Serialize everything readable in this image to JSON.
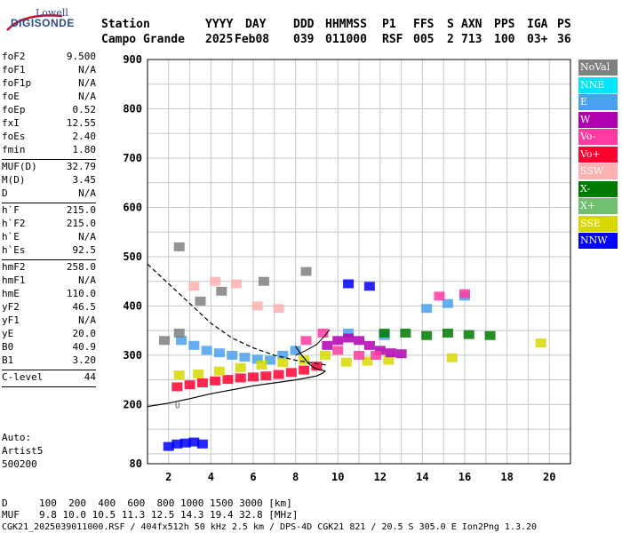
{
  "logo": {
    "line1": "Lowell",
    "line2": "DIGISONDE"
  },
  "header": {
    "labels": [
      "Station",
      "YYYY",
      "DAY",
      "DDD",
      "HHMMSS",
      "P1",
      "FFS",
      "S",
      "AXN",
      "PPS",
      "IGA",
      "PS"
    ],
    "values": [
      "Campo Grande",
      "2025",
      "Feb08",
      "039",
      "011000",
      "RSF",
      "005",
      "2",
      "713",
      "100",
      "03+",
      "36"
    ]
  },
  "params": [
    {
      "label": "foF2",
      "value": "9.500"
    },
    {
      "label": "foF1",
      "value": "N/A"
    },
    {
      "label": "foF1p",
      "value": "N/A"
    },
    {
      "label": "foE",
      "value": "N/A"
    },
    {
      "label": "foEp",
      "value": "0.52"
    },
    {
      "label": "fxI",
      "value": "12.55"
    },
    {
      "label": "foEs",
      "value": "2.40"
    },
    {
      "label": "fmin",
      "value": "1.80"
    },
    {
      "label": "MUF(D)",
      "value": "32.79"
    },
    {
      "label": "M(D)",
      "value": "3.45"
    },
    {
      "label": "D",
      "value": "N/A"
    },
    {
      "label": "h`F",
      "value": "215.0"
    },
    {
      "label": "h`F2",
      "value": "215.0"
    },
    {
      "label": "h`E",
      "value": "N/A"
    },
    {
      "label": "h`Es",
      "value": "92.5"
    },
    {
      "label": "hmF2",
      "value": "258.0"
    },
    {
      "label": "hmF1",
      "value": "N/A"
    },
    {
      "label": "hmE",
      "value": "110.0"
    },
    {
      "label": "yF2",
      "value": "46.5"
    },
    {
      "label": "yF1",
      "value": "N/A"
    },
    {
      "label": "yE",
      "value": "20.0"
    },
    {
      "label": "B0",
      "value": "40.9"
    },
    {
      "label": "B1",
      "value": "3.20"
    },
    {
      "label": "C-level",
      "value": "44"
    }
  ],
  "auto": {
    "line1": "Auto:",
    "line2": "Artist5",
    "line3": "500200"
  },
  "legend": [
    {
      "label": "NoVal",
      "color": "#808080"
    },
    {
      "label": "NNE",
      "color": "#00e5ff"
    },
    {
      "label": "E",
      "color": "#4aa0f0"
    },
    {
      "label": "W",
      "color": "#b000b0"
    },
    {
      "label": "Vo-",
      "color": "#ff3aa0"
    },
    {
      "label": "Vo+",
      "color": "#ff0030"
    },
    {
      "label": "SSW",
      "color": "#ffb0b0"
    },
    {
      "label": "X-",
      "color": "#007a00"
    },
    {
      "label": "X+",
      "color": "#70c070"
    },
    {
      "label": "SSE",
      "color": "#d8d800"
    },
    {
      "label": "NNW",
      "color": "#0000ff"
    }
  ],
  "footer": {
    "d_label": "D",
    "d_values": "100  200  400  600  800 1000 1500 3000 [km]",
    "muf_label": "MUF",
    "muf_values": "9.8 10.0 10.5 11.3 12.5 14.3 19.4 32.8 [MHz]",
    "file_line": "CGK21_2025039011000.RSF / 404fx512h 50 kHz 2.5 km / DPS-4D CGK21 821 / 20.5 S 305.0 E Ion2Png 1.3.20"
  },
  "chart_data": {
    "type": "scatter",
    "xlim": [
      1,
      21
    ],
    "ylim": [
      80,
      900
    ],
    "x_ticks": [
      2,
      4,
      6,
      8,
      10,
      12,
      14,
      16,
      18,
      20
    ],
    "y_ticks": [
      80,
      200,
      300,
      400,
      500,
      600,
      700,
      800,
      900
    ],
    "grid": true,
    "annotation": "U",
    "series": [
      {
        "color": "#ff0030",
        "points": [
          [
            2.4,
            236
          ],
          [
            3.0,
            240
          ],
          [
            3.6,
            244
          ],
          [
            4.2,
            248
          ],
          [
            4.8,
            251
          ],
          [
            5.4,
            254
          ],
          [
            6.0,
            256
          ],
          [
            6.6,
            258
          ],
          [
            7.2,
            261
          ],
          [
            7.8,
            265
          ],
          [
            8.4,
            270
          ],
          [
            9.0,
            278
          ]
        ]
      },
      {
        "color": "#4aa0f0",
        "points": [
          [
            2.6,
            330
          ],
          [
            3.2,
            320
          ],
          [
            3.8,
            310
          ],
          [
            4.4,
            305
          ],
          [
            5.0,
            300
          ],
          [
            5.6,
            296
          ],
          [
            6.2,
            292
          ],
          [
            6.8,
            290
          ],
          [
            7.4,
            300
          ],
          [
            8.0,
            310
          ],
          [
            10.5,
            345
          ],
          [
            12.2,
            340
          ],
          [
            14.2,
            395
          ],
          [
            15.2,
            405
          ],
          [
            16.0,
            420
          ]
        ]
      },
      {
        "color": "#d8d800",
        "points": [
          [
            2.5,
            260
          ],
          [
            3.4,
            262
          ],
          [
            4.4,
            268
          ],
          [
            5.4,
            275
          ],
          [
            6.4,
            280
          ],
          [
            7.4,
            285
          ],
          [
            8.4,
            290
          ],
          [
            9.4,
            300
          ],
          [
            10.4,
            286
          ],
          [
            11.4,
            288
          ],
          [
            12.4,
            290
          ],
          [
            15.4,
            295
          ],
          [
            19.6,
            325
          ]
        ]
      },
      {
        "color": "#b000b0",
        "points": [
          [
            9.5,
            320
          ],
          [
            10.0,
            330
          ],
          [
            10.5,
            335
          ],
          [
            11.0,
            330
          ],
          [
            11.5,
            320
          ],
          [
            12.0,
            310
          ],
          [
            12.5,
            305
          ],
          [
            13.0,
            303
          ]
        ]
      },
      {
        "color": "#ff3aa0",
        "points": [
          [
            8.5,
            330
          ],
          [
            9.3,
            345
          ],
          [
            10.0,
            310
          ],
          [
            11.0,
            300
          ],
          [
            11.8,
            300
          ],
          [
            14.8,
            420
          ],
          [
            16.0,
            425
          ]
        ]
      },
      {
        "color": "#007a00",
        "points": [
          [
            12.2,
            345
          ],
          [
            13.2,
            345
          ],
          [
            14.2,
            340
          ],
          [
            15.2,
            345
          ],
          [
            16.2,
            342
          ],
          [
            17.2,
            340
          ]
        ]
      },
      {
        "color": "#0000ff",
        "points": [
          [
            2.0,
            115
          ],
          [
            2.4,
            120
          ],
          [
            2.8,
            122
          ],
          [
            3.2,
            124
          ],
          [
            3.6,
            120
          ],
          [
            10.5,
            445
          ],
          [
            11.5,
            440
          ]
        ]
      },
      {
        "color": "#ffb0b0",
        "points": [
          [
            3.2,
            440
          ],
          [
            4.2,
            450
          ],
          [
            5.2,
            445
          ],
          [
            6.2,
            400
          ],
          [
            7.2,
            395
          ]
        ]
      },
      {
        "color": "#808080",
        "points": [
          [
            1.8,
            330
          ],
          [
            2.5,
            345
          ],
          [
            2.5,
            520
          ],
          [
            3.5,
            410
          ],
          [
            4.5,
            430
          ],
          [
            6.5,
            450
          ],
          [
            8.5,
            470
          ]
        ]
      }
    ],
    "curves": [
      {
        "style": "dashed",
        "points": [
          [
            1.0,
            485
          ],
          [
            1.5,
            465
          ],
          [
            2.0,
            445
          ],
          [
            2.5,
            425
          ],
          [
            3.0,
            405
          ],
          [
            3.5,
            385
          ],
          [
            4.0,
            365
          ],
          [
            4.5,
            350
          ],
          [
            5.0,
            335
          ],
          [
            6.0,
            315
          ],
          [
            7.0,
            300
          ],
          [
            8.0,
            290
          ],
          [
            9.0,
            283
          ],
          [
            9.5,
            280
          ]
        ]
      },
      {
        "style": "solid",
        "points": [
          [
            1.0,
            196
          ],
          [
            2.0,
            203
          ],
          [
            3.0,
            212
          ],
          [
            4.0,
            222
          ],
          [
            5.0,
            230
          ],
          [
            6.0,
            238
          ],
          [
            7.0,
            244
          ],
          [
            8.0,
            250
          ],
          [
            8.5,
            254
          ],
          [
            9.0,
            258
          ],
          [
            9.3,
            264
          ],
          [
            9.4,
            268
          ],
          [
            9.2,
            270
          ],
          [
            8.9,
            274
          ],
          [
            8.6,
            284
          ],
          [
            8.3,
            300
          ],
          [
            8.0,
            318
          ]
        ]
      },
      {
        "style": "solid-thin",
        "points": [
          [
            8.0,
            300
          ],
          [
            8.5,
            310
          ],
          [
            9.0,
            322
          ],
          [
            9.4,
            340
          ],
          [
            9.6,
            352
          ]
        ]
      }
    ]
  }
}
